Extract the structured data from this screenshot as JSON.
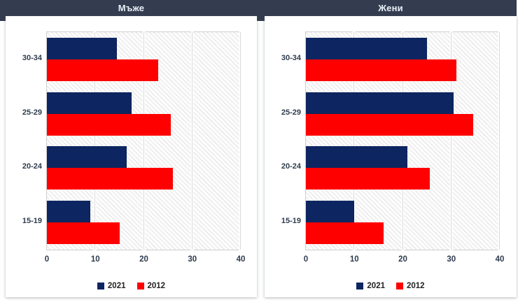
{
  "header": {
    "background": "#333D4F",
    "text_color": "#E9EFF7"
  },
  "colors": {
    "series_2021": "#0D2560",
    "series_2012": "#FF0000",
    "axis_text": "#2E3B4E",
    "grid": "#D9D9D9",
    "panel_bg": "#FFFFFF"
  },
  "chart_data": [
    {
      "type": "bar",
      "orientation": "horizontal",
      "title": "Мъже",
      "categories": [
        "30-34",
        "25-29",
        "20-24",
        "15-19"
      ],
      "series": [
        {
          "name": "2021",
          "values": [
            14.5,
            17.5,
            16.5,
            9
          ]
        },
        {
          "name": "2012",
          "values": [
            23,
            25.5,
            26,
            15
          ]
        }
      ],
      "xticks": [
        0,
        10,
        20,
        30,
        40
      ],
      "xlim": [
        0,
        40
      ],
      "grid": true,
      "legend": [
        "2021",
        "2012"
      ],
      "legend_position": "bottom"
    },
    {
      "type": "bar",
      "orientation": "horizontal",
      "title": "Жени",
      "categories": [
        "30-34",
        "25-29",
        "20-24",
        "15-19"
      ],
      "series": [
        {
          "name": "2021",
          "values": [
            25,
            30.5,
            21,
            10
          ]
        },
        {
          "name": "2012",
          "values": [
            31,
            34.5,
            25.5,
            16
          ]
        }
      ],
      "xticks": [
        0,
        10,
        20,
        30,
        40
      ],
      "xlim": [
        0,
        40
      ],
      "grid": true,
      "legend": [
        "2021",
        "2012"
      ],
      "legend_position": "bottom"
    }
  ]
}
